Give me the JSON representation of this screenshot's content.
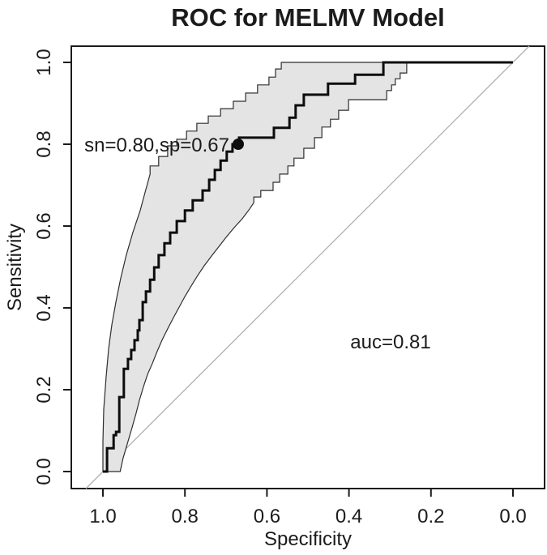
{
  "chart_data": {
    "type": "line",
    "title": "ROC for MELMV Model",
    "xlabel": "Specificity",
    "ylabel": "Sensitivity",
    "x_axis_reversed": true,
    "x_ticks": [
      1.0,
      0.8,
      0.6,
      0.4,
      0.2,
      0.0
    ],
    "x_tick_labels": [
      "1.0",
      "0.8",
      "0.6",
      "0.4",
      "0.2",
      "0.0"
    ],
    "y_ticks": [
      0.0,
      0.2,
      0.4,
      0.6,
      0.8,
      1.0
    ],
    "y_tick_labels": [
      "0.0",
      "0.2",
      "0.4",
      "0.6",
      "0.8",
      "1.0"
    ],
    "diagonal_reference_line": true,
    "annotations": {
      "operating_point": {
        "label": "sn=0.80,sp=0.67",
        "sn": 0.8,
        "sp": 0.67
      },
      "auc": {
        "label": "auc=0.81",
        "value": 0.81
      }
    },
    "colors": {
      "band_fill": "#e4e4e4",
      "band_edge": "#2e2e2e",
      "curve": "#0d0d0d",
      "diagonal": "#b0b0b0",
      "text": "#1b1b1b"
    },
    "series": [
      {
        "name": "roc_curve",
        "points": [
          [
            1.0,
            0.0
          ],
          [
            0.99,
            0.0
          ],
          [
            0.99,
            0.057
          ],
          [
            0.974,
            0.057
          ],
          [
            0.974,
            0.089
          ],
          [
            0.968,
            0.089
          ],
          [
            0.968,
            0.097
          ],
          [
            0.96,
            0.097
          ],
          [
            0.96,
            0.182
          ],
          [
            0.949,
            0.182
          ],
          [
            0.949,
            0.251
          ],
          [
            0.939,
            0.251
          ],
          [
            0.939,
            0.275
          ],
          [
            0.931,
            0.275
          ],
          [
            0.931,
            0.297
          ],
          [
            0.923,
            0.297
          ],
          [
            0.923,
            0.321
          ],
          [
            0.915,
            0.321
          ],
          [
            0.915,
            0.345
          ],
          [
            0.911,
            0.345
          ],
          [
            0.911,
            0.37
          ],
          [
            0.903,
            0.37
          ],
          [
            0.903,
            0.414
          ],
          [
            0.895,
            0.414
          ],
          [
            0.895,
            0.44
          ],
          [
            0.885,
            0.44
          ],
          [
            0.885,
            0.469
          ],
          [
            0.875,
            0.469
          ],
          [
            0.875,
            0.499
          ],
          [
            0.864,
            0.499
          ],
          [
            0.864,
            0.529
          ],
          [
            0.85,
            0.529
          ],
          [
            0.85,
            0.558
          ],
          [
            0.836,
            0.558
          ],
          [
            0.836,
            0.584
          ],
          [
            0.82,
            0.584
          ],
          [
            0.82,
            0.612
          ],
          [
            0.8,
            0.612
          ],
          [
            0.8,
            0.638
          ],
          [
            0.781,
            0.638
          ],
          [
            0.781,
            0.663
          ],
          [
            0.757,
            0.663
          ],
          [
            0.757,
            0.687
          ],
          [
            0.741,
            0.687
          ],
          [
            0.741,
            0.713
          ],
          [
            0.727,
            0.713
          ],
          [
            0.727,
            0.737
          ],
          [
            0.713,
            0.737
          ],
          [
            0.713,
            0.76
          ],
          [
            0.698,
            0.76
          ],
          [
            0.698,
            0.782
          ],
          [
            0.684,
            0.782
          ],
          [
            0.684,
            0.8
          ],
          [
            0.668,
            0.8
          ],
          [
            0.668,
            0.816
          ],
          [
            0.583,
            0.816
          ],
          [
            0.583,
            0.84
          ],
          [
            0.545,
            0.84
          ],
          [
            0.545,
            0.865
          ],
          [
            0.53,
            0.865
          ],
          [
            0.53,
            0.895
          ],
          [
            0.51,
            0.895
          ],
          [
            0.51,
            0.921
          ],
          [
            0.451,
            0.921
          ],
          [
            0.451,
            0.948
          ],
          [
            0.385,
            0.948
          ],
          [
            0.385,
            0.97
          ],
          [
            0.316,
            0.97
          ],
          [
            0.316,
            1.0
          ],
          [
            0.0,
            1.0
          ]
        ]
      },
      {
        "name": "ci_upper",
        "points": [
          [
            1.0,
            0.0
          ],
          [
            1.0,
            0.073
          ],
          [
            0.998,
            0.152
          ],
          [
            0.992,
            0.232
          ],
          [
            0.986,
            0.301
          ],
          [
            0.978,
            0.36
          ],
          [
            0.968,
            0.416
          ],
          [
            0.957,
            0.471
          ],
          [
            0.943,
            0.529
          ],
          [
            0.927,
            0.584
          ],
          [
            0.909,
            0.638
          ],
          [
            0.897,
            0.683
          ],
          [
            0.885,
            0.727
          ],
          [
            0.885,
            0.747
          ],
          [
            0.864,
            0.747
          ],
          [
            0.864,
            0.77
          ],
          [
            0.842,
            0.77
          ],
          [
            0.842,
            0.796
          ],
          [
            0.82,
            0.796
          ],
          [
            0.82,
            0.812
          ],
          [
            0.796,
            0.812
          ],
          [
            0.796,
            0.832
          ],
          [
            0.771,
            0.832
          ],
          [
            0.771,
            0.851
          ],
          [
            0.743,
            0.851
          ],
          [
            0.743,
            0.869
          ],
          [
            0.713,
            0.869
          ],
          [
            0.713,
            0.887
          ],
          [
            0.682,
            0.887
          ],
          [
            0.682,
            0.905
          ],
          [
            0.652,
            0.905
          ],
          [
            0.652,
            0.925
          ],
          [
            0.623,
            0.925
          ],
          [
            0.623,
            0.945
          ],
          [
            0.595,
            0.945
          ],
          [
            0.595,
            0.964
          ],
          [
            0.579,
            0.964
          ],
          [
            0.579,
            0.984
          ],
          [
            0.565,
            0.984
          ],
          [
            0.565,
            1.0
          ]
        ]
      },
      {
        "name": "ci_lower",
        "points": [
          [
            0.958,
            0.0
          ],
          [
            0.951,
            0.032
          ],
          [
            0.939,
            0.073
          ],
          [
            0.929,
            0.107
          ],
          [
            0.919,
            0.143
          ],
          [
            0.911,
            0.174
          ],
          [
            0.901,
            0.208
          ],
          [
            0.891,
            0.238
          ],
          [
            0.879,
            0.265
          ],
          [
            0.868,
            0.293
          ],
          [
            0.856,
            0.321
          ],
          [
            0.842,
            0.349
          ],
          [
            0.828,
            0.376
          ],
          [
            0.814,
            0.402
          ],
          [
            0.8,
            0.428
          ],
          [
            0.785,
            0.453
          ],
          [
            0.769,
            0.479
          ],
          [
            0.753,
            0.503
          ],
          [
            0.735,
            0.527
          ],
          [
            0.717,
            0.55
          ],
          [
            0.7,
            0.572
          ],
          [
            0.68,
            0.596
          ],
          [
            0.66,
            0.618
          ],
          [
            0.642,
            0.642
          ],
          [
            0.632,
            0.657
          ],
          [
            0.632,
            0.671
          ],
          [
            0.615,
            0.671
          ],
          [
            0.615,
            0.687
          ],
          [
            0.585,
            0.687
          ],
          [
            0.585,
            0.707
          ],
          [
            0.569,
            0.707
          ],
          [
            0.569,
            0.727
          ],
          [
            0.549,
            0.727
          ],
          [
            0.549,
            0.747
          ],
          [
            0.534,
            0.747
          ],
          [
            0.534,
            0.766
          ],
          [
            0.51,
            0.766
          ],
          [
            0.51,
            0.79
          ],
          [
            0.484,
            0.79
          ],
          [
            0.484,
            0.816
          ],
          [
            0.466,
            0.816
          ],
          [
            0.466,
            0.842
          ],
          [
            0.445,
            0.842
          ],
          [
            0.445,
            0.861
          ],
          [
            0.425,
            0.861
          ],
          [
            0.425,
            0.883
          ],
          [
            0.401,
            0.883
          ],
          [
            0.401,
            0.909
          ],
          [
            0.308,
            0.909
          ],
          [
            0.308,
            0.931
          ],
          [
            0.296,
            0.931
          ],
          [
            0.296,
            0.945
          ],
          [
            0.287,
            0.945
          ],
          [
            0.287,
            0.96
          ],
          [
            0.275,
            0.96
          ],
          [
            0.275,
            0.974
          ],
          [
            0.259,
            0.974
          ],
          [
            0.259,
            1.0
          ]
        ]
      }
    ]
  }
}
